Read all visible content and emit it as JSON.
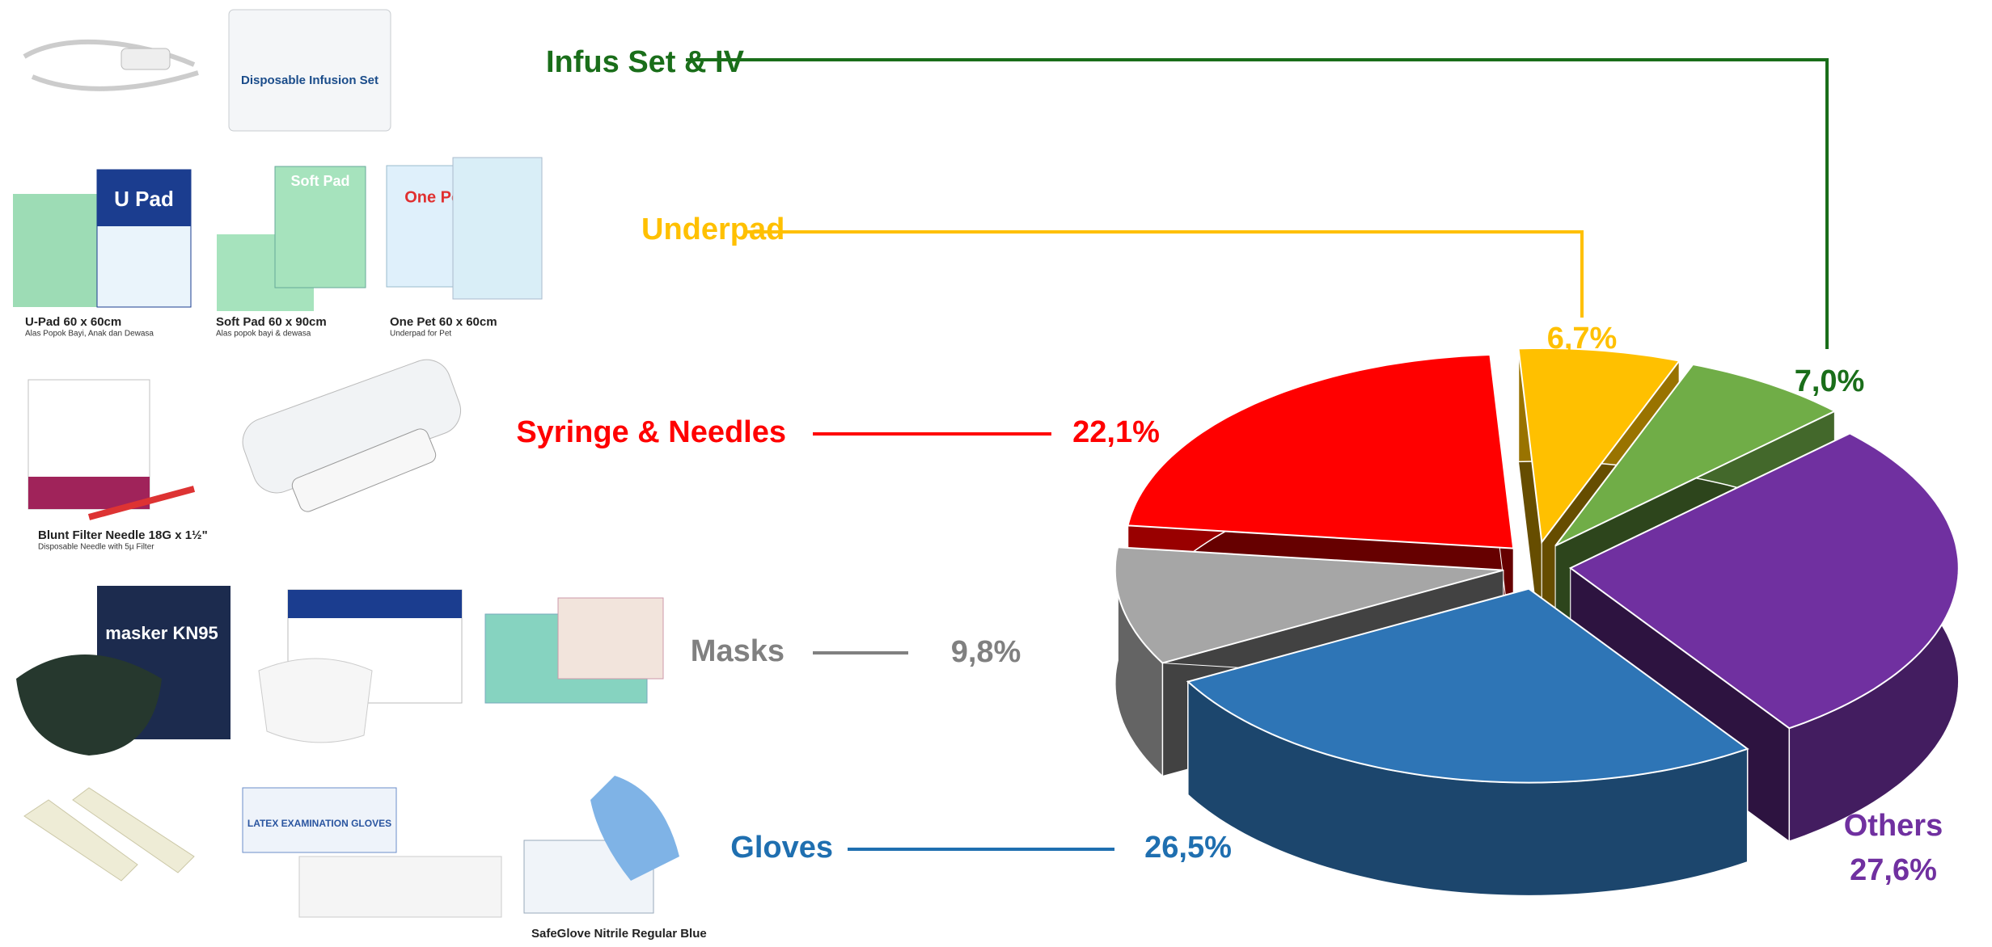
{
  "chart_data": {
    "type": "pie",
    "categories": [
      "Underpad",
      "Infus Set & IV",
      "Others",
      "Gloves",
      "Masks",
      "Syringe & Needles"
    ],
    "values": [
      6.7,
      7.0,
      27.6,
      26.5,
      9.8,
      22.1
    ],
    "value_labels": [
      "6,7%",
      "7,0%",
      "27,6%",
      "26,5%",
      "9,8%",
      "22,1%"
    ],
    "colors": [
      "#ffc000",
      "#70ad47",
      "#7030a0",
      "#2e75b6",
      "#a6a6a6",
      "#ff0000"
    ],
    "label_colors": [
      "#ffc000",
      "#1a6e1a",
      "#7030a0",
      "#1f6fb0",
      "#808080",
      "#ff0000"
    ]
  },
  "products": {
    "package_texts": [
      "Disposable Infusion Set",
      "U Pad",
      "Soft Pad",
      "One Pet",
      "masker KN95",
      "LATEX EXAMINATION GLOVES"
    ],
    "items": [
      {
        "name": "U-Pad 60 x 60cm",
        "note": "Alas Popok Bayi, Anak dan Dewasa"
      },
      {
        "name": "Soft Pad 60 x 90cm",
        "note": "Alas popok bayi & dewasa"
      },
      {
        "name": "One Pet 60 x 60cm",
        "note": "Underpad for Pet"
      },
      {
        "name": "Blunt Filter Needle 18G x 1½\"",
        "note": "Disposable Needle with 5µ Filter"
      },
      {
        "name": "SafeGlove Nitrile Regular Blue"
      }
    ]
  }
}
